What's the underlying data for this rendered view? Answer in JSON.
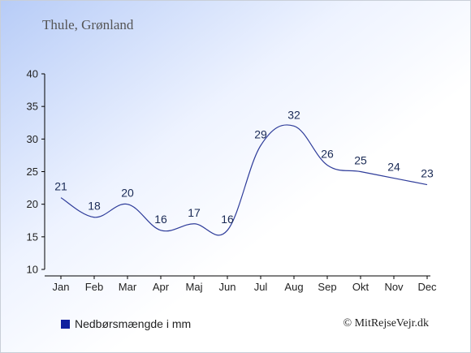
{
  "header": {
    "title": "Thule, Grønland"
  },
  "legend": {
    "label": "Nedbørsmængde i mm"
  },
  "credit": "© MitRejseVejr.dk",
  "colors": {
    "line": "#2e3c9a",
    "legend_swatch": "#0f1f9e",
    "label_text": "#1a2a55",
    "axis": "#000000"
  },
  "chart_data": {
    "type": "line",
    "categories": [
      "Jan",
      "Feb",
      "Mar",
      "Apr",
      "Maj",
      "Jun",
      "Jul",
      "Aug",
      "Sep",
      "Okt",
      "Nov",
      "Dec"
    ],
    "series": [
      {
        "name": "Nedbørsmængde i mm",
        "values": [
          21,
          18,
          20,
          16,
          17,
          16,
          29,
          32,
          26,
          25,
          24,
          23
        ]
      }
    ],
    "ylim": [
      10,
      40
    ],
    "yticks": [
      10,
      15,
      20,
      25,
      30,
      35,
      40
    ],
    "grid": false,
    "legend_position": "bottom-left"
  }
}
